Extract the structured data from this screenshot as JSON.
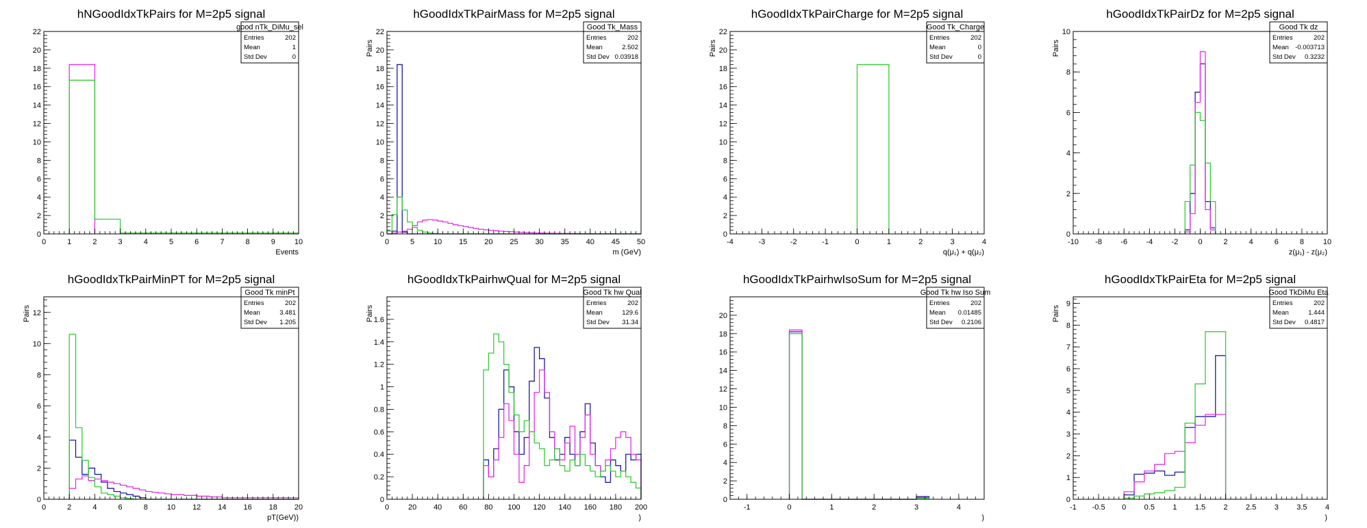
{
  "colors": {
    "blue": "#1a1aa6",
    "magenta": "#e62ee6",
    "green": "#33cc33",
    "axis": "#000000"
  },
  "chart_data": [
    {
      "type": "histogram",
      "title": "hNGoodIdxTkPairs for M=2p5 signal",
      "xlabel": "Events",
      "ylabel": "",
      "xlim": [
        0,
        10
      ],
      "ylim": [
        0,
        22
      ],
      "xticks": [
        0,
        1,
        2,
        3,
        4,
        5,
        6,
        7,
        8,
        9,
        10
      ],
      "yticks": [
        0,
        2,
        4,
        6,
        8,
        10,
        12,
        14,
        16,
        18,
        20,
        22
      ],
      "stats": {
        "name": "good nTk_DiMu_sel",
        "rows": [
          [
            "Entries",
            "202"
          ],
          [
            "Mean",
            "1"
          ],
          [
            "Std Dev",
            "0"
          ]
        ]
      },
      "series": [
        {
          "color": "magenta",
          "edges": [
            1,
            2
          ],
          "values": [
            18.4
          ]
        },
        {
          "color": "green",
          "edges": [
            1,
            2,
            3,
            10
          ],
          "values": [
            16.7,
            1.6,
            0.1
          ]
        }
      ]
    },
    {
      "type": "histogram",
      "title": "hGoodIdxTkPairMass for M=2p5 signal",
      "xlabel": "m (GeV)",
      "ylabel": "Pairs",
      "xlim": [
        0,
        50
      ],
      "ylim": [
        0,
        22
      ],
      "xticks": [
        0,
        5,
        10,
        15,
        20,
        25,
        30,
        35,
        40,
        45,
        50
      ],
      "yticks": [
        0,
        2,
        4,
        6,
        8,
        10,
        12,
        14,
        16,
        18,
        20,
        22
      ],
      "stats": {
        "name": "Good Tk_Mass",
        "rows": [
          [
            "Entries",
            "202"
          ],
          [
            "Mean",
            "2.502"
          ],
          [
            "Std Dev",
            "0.03918"
          ]
        ]
      },
      "series": [
        {
          "color": "blue",
          "edges": [
            0,
            1,
            2,
            3,
            4,
            50
          ],
          "values": [
            0,
            0.3,
            18.4,
            0.2,
            0
          ]
        },
        {
          "color": "magenta",
          "edges": [
            0,
            1,
            2,
            3,
            4,
            5,
            6,
            7,
            8,
            9,
            10,
            11,
            12,
            13,
            14,
            15,
            16,
            17,
            18,
            19,
            20,
            21,
            22,
            23,
            24,
            25,
            26,
            27,
            28,
            29,
            30,
            31,
            32,
            33,
            34,
            35,
            36,
            37,
            38,
            39,
            40,
            41,
            42,
            43,
            44,
            45,
            46,
            47,
            48,
            49,
            50
          ],
          "values": [
            0,
            0.1,
            0.2,
            0.3,
            0.5,
            0.9,
            1.3,
            1.5,
            1.55,
            1.5,
            1.4,
            1.3,
            1.15,
            1.0,
            0.9,
            0.8,
            0.7,
            0.6,
            0.5,
            0.45,
            0.4,
            0.35,
            0.3,
            0.27,
            0.24,
            0.2,
            0.18,
            0.15,
            0.13,
            0.1,
            0.1,
            0.08,
            0.07,
            0.06,
            0.05,
            0.05,
            0.04,
            0.04,
            0.03,
            0.03,
            0.03,
            0.02,
            0.02,
            0.02,
            0.02,
            0.01,
            0.01,
            0.01,
            0.01,
            0.01
          ]
        },
        {
          "color": "green",
          "edges": [
            0,
            1,
            2,
            3,
            4,
            5,
            6,
            7,
            8,
            9,
            10,
            50
          ],
          "values": [
            0.3,
            2.1,
            4.0,
            2.6,
            1.3,
            0.7,
            0.4,
            0.2,
            0.1,
            0.05,
            0
          ]
        }
      ]
    },
    {
      "type": "histogram",
      "title": "hGoodIdxTkPairCharge for M=2p5 signal",
      "xlabel": "q(μ₁) + q(μ₂)",
      "ylabel": "Pairs",
      "xlim": [
        -4,
        4
      ],
      "ylim": [
        0,
        22
      ],
      "xticks": [
        -4,
        -3,
        -2,
        -1,
        0,
        1,
        2,
        3,
        4
      ],
      "yticks": [
        0,
        2,
        4,
        6,
        8,
        10,
        12,
        14,
        16,
        18,
        20,
        22
      ],
      "stats": {
        "name": "Good Tk_Charge",
        "rows": [
          [
            "Entries",
            "202"
          ],
          [
            "Mean",
            "0"
          ],
          [
            "Std Dev",
            "0"
          ]
        ]
      },
      "series": [
        {
          "color": "green",
          "edges": [
            0,
            1
          ],
          "values": [
            18.4
          ]
        }
      ]
    },
    {
      "type": "histogram",
      "title": "hGoodIdxTkPairDz for M=2p5 signal",
      "xlabel": "z(μ₁) - z(μ₂)",
      "ylabel": "Pairs",
      "xlim": [
        -10,
        10
      ],
      "ylim": [
        0,
        10
      ],
      "xticks": [
        -10,
        -8,
        -6,
        -4,
        -2,
        0,
        2,
        4,
        6,
        8,
        10
      ],
      "yticks": [
        0,
        2,
        4,
        6,
        8,
        10
      ],
      "stats": {
        "name": "Good Tk dz",
        "rows": [
          [
            "Entries",
            "202"
          ],
          [
            "Mean",
            "-0.003713"
          ],
          [
            "Std Dev",
            "0.3232"
          ]
        ]
      },
      "series": [
        {
          "color": "blue",
          "edges": [
            -1.2,
            -0.8,
            -0.4,
            0,
            0.4,
            0.8,
            1.2
          ],
          "values": [
            0.2,
            2.0,
            7.0,
            8.4,
            1.6,
            0.3
          ]
        },
        {
          "color": "magenta",
          "edges": [
            -1.2,
            -0.8,
            -0.4,
            0,
            0.4,
            0.8,
            1.2
          ],
          "values": [
            0.1,
            1.0,
            6.5,
            9.0,
            1.2,
            0.2
          ]
        },
        {
          "color": "green",
          "edges": [
            -1.2,
            -0.8,
            -0.4,
            0,
            0.4,
            0.8,
            1.2
          ],
          "values": [
            1.6,
            3.4,
            6.0,
            5.6,
            3.5,
            1.6
          ]
        }
      ]
    },
    {
      "type": "histogram",
      "title": "hGoodIdxTkPairMinPT for M=2p5 signal",
      "xlabel": "pT(GeV))",
      "ylabel": "Pairs",
      "xlim": [
        0,
        20
      ],
      "ylim": [
        0,
        13
      ],
      "xticks": [
        0,
        2,
        4,
        6,
        8,
        10,
        12,
        14,
        16,
        18,
        20
      ],
      "yticks": [
        0,
        2,
        4,
        6,
        8,
        10,
        12
      ],
      "stats": {
        "name": "Good Tk minPt",
        "rows": [
          [
            "Entries",
            "202"
          ],
          [
            "Mean",
            "3.481"
          ],
          [
            "Std Dev",
            "1.205"
          ]
        ]
      },
      "series": [
        {
          "color": "blue",
          "edges": [
            2,
            2.5,
            3,
            3.5,
            4,
            4.5,
            5,
            5.5,
            6,
            6.5,
            7,
            7.5,
            8,
            20
          ],
          "values": [
            3.8,
            2.7,
            1.6,
            2.0,
            1.6,
            1.1,
            0.7,
            0.5,
            0.4,
            0.3,
            0.2,
            0.1,
            0
          ]
        },
        {
          "color": "magenta",
          "edges": [
            2,
            2.5,
            3,
            3.5,
            4,
            4.5,
            5,
            5.5,
            6,
            6.5,
            7,
            7.5,
            8,
            8.5,
            9,
            9.5,
            10,
            11,
            12,
            13,
            14,
            20
          ],
          "values": [
            0.7,
            1.3,
            1.5,
            1.2,
            1.3,
            1.2,
            1.1,
            1.0,
            0.9,
            0.8,
            0.7,
            0.6,
            0.5,
            0.45,
            0.4,
            0.35,
            0.3,
            0.25,
            0.2,
            0.15,
            0.1
          ]
        },
        {
          "color": "green",
          "edges": [
            2,
            2.5,
            3,
            3.5,
            4,
            4.5,
            5,
            5.5,
            6,
            6.5,
            7,
            20
          ],
          "values": [
            10.6,
            4.6,
            2.5,
            1.4,
            0.8,
            0.4,
            0.3,
            0.2,
            0.1,
            0.05,
            0
          ]
        }
      ]
    },
    {
      "type": "histogram",
      "title": "hGoodIdxTkPairhwQual for M=2p5 signal",
      "xlabel": ")",
      "ylabel": "Pairs",
      "xlim": [
        0,
        200
      ],
      "ylim": [
        0,
        1.8
      ],
      "xticks": [
        0,
        20,
        40,
        60,
        80,
        100,
        120,
        140,
        160,
        180,
        200
      ],
      "yticks": [
        0,
        0.2,
        0.4,
        0.6,
        0.8,
        1,
        1.2,
        1.4,
        1.6
      ],
      "stats": {
        "name": "Good Tk hw Qual",
        "rows": [
          [
            "Entries",
            "202"
          ],
          [
            "Mean",
            "129.6"
          ],
          [
            "Std Dev",
            "31.34"
          ]
        ]
      },
      "series": [
        {
          "color": "blue",
          "edges": [
            76,
            80,
            84,
            88,
            92,
            96,
            100,
            104,
            108,
            112,
            116,
            120,
            124,
            128,
            132,
            136,
            140,
            144,
            148,
            152,
            156,
            160,
            164,
            168,
            172,
            176,
            180,
            184,
            188,
            192,
            196,
            200
          ],
          "values": [
            0.35,
            0.2,
            0.45,
            0.8,
            1.15,
            1.0,
            0.6,
            0.4,
            0.55,
            1.05,
            1.35,
            1.25,
            0.9,
            0.55,
            0.35,
            0.4,
            0.55,
            0.4,
            0.3,
            0.6,
            0.85,
            0.5,
            0.3,
            0.2,
            0.15,
            0.35,
            0.3,
            0.25,
            0.4,
            0.35,
            0.4
          ]
        },
        {
          "color": "magenta",
          "edges": [
            76,
            80,
            84,
            88,
            92,
            96,
            100,
            104,
            108,
            112,
            116,
            120,
            124,
            128,
            132,
            136,
            140,
            144,
            148,
            152,
            156,
            160,
            164,
            168,
            172,
            176,
            180,
            184,
            188,
            192,
            196,
            200
          ],
          "values": [
            0.3,
            0.2,
            0.35,
            0.55,
            0.85,
            0.7,
            0.4,
            0.15,
            0.3,
            0.6,
            0.95,
            1.15,
            0.95,
            0.6,
            0.45,
            0.35,
            0.5,
            0.65,
            0.4,
            0.55,
            0.75,
            0.4,
            0.3,
            0.25,
            0.35,
            0.45,
            0.55,
            0.6,
            0.55,
            0.4,
            0.35
          ]
        },
        {
          "color": "green",
          "edges": [
            76,
            80,
            84,
            88,
            92,
            96,
            100,
            104,
            108,
            112,
            116,
            120,
            124,
            128,
            132,
            136,
            140,
            144,
            148,
            152,
            156,
            160,
            164,
            168,
            172,
            176,
            180,
            184,
            188,
            192,
            196,
            200
          ],
          "values": [
            1.15,
            1.3,
            1.47,
            1.4,
            1.2,
            0.95,
            0.75,
            0.6,
            0.7,
            0.6,
            0.5,
            0.45,
            0.3,
            0.35,
            0.45,
            0.3,
            0.25,
            0.35,
            0.3,
            0.4,
            0.3,
            0.25,
            0.2,
            0.25,
            0.3,
            0.25,
            0.2,
            0.25,
            0.2,
            0.15,
            0.1
          ]
        }
      ]
    },
    {
      "type": "histogram",
      "title": "hGoodIdxTkPairhwIsoSum for M=2p5 signal",
      "xlabel": ")",
      "ylabel": "",
      "xlim": [
        -1.4,
        4.6
      ],
      "ylim": [
        0,
        22
      ],
      "xticks": [
        -1,
        0,
        1,
        2,
        3,
        4
      ],
      "yticks": [
        0,
        2,
        4,
        6,
        8,
        10,
        12,
        14,
        16,
        18,
        20
      ],
      "stats": {
        "name": "Good Tk hw Iso Sum",
        "rows": [
          [
            "Entries",
            "202"
          ],
          [
            "Mean",
            "0.01485"
          ],
          [
            "Std Dev",
            "0.2106"
          ]
        ]
      },
      "series": [
        {
          "color": "blue",
          "edges": [
            0,
            0.3,
            3,
            3.3
          ],
          "values": [
            18.2,
            0,
            0.3
          ]
        },
        {
          "color": "magenta",
          "edges": [
            0,
            0.3,
            3,
            3.3
          ],
          "values": [
            18.4,
            0,
            0.2
          ]
        },
        {
          "color": "green",
          "edges": [
            0,
            0.3,
            3,
            3.3
          ],
          "values": [
            18.0,
            0,
            0.1
          ]
        }
      ]
    },
    {
      "type": "histogram",
      "title": "hGoodIdxTkPairEta for M=2p5 signal",
      "xlabel": ")",
      "ylabel": "Pairs",
      "xlim": [
        -1,
        4
      ],
      "ylim": [
        0,
        9.3
      ],
      "xticks": [
        -1,
        -0.5,
        0,
        0.5,
        1,
        1.5,
        2,
        2.5,
        3,
        3.5,
        4
      ],
      "yticks": [
        0,
        1,
        2,
        3,
        4,
        5,
        6,
        7,
        8,
        9
      ],
      "stats": {
        "name": "Good TkDiMu Eta",
        "rows": [
          [
            "Entries",
            "202"
          ],
          [
            "Mean",
            "1.444"
          ],
          [
            "Std Dev",
            "0.4817"
          ]
        ]
      },
      "series": [
        {
          "color": "blue",
          "edges": [
            0,
            0.2,
            0.4,
            0.6,
            0.8,
            1,
            1.2,
            1.4,
            1.6,
            1.8,
            2.0
          ],
          "values": [
            0.2,
            1.15,
            1.2,
            1.3,
            1.1,
            1.25,
            3.3,
            3.8,
            3.8,
            6.6
          ]
        },
        {
          "color": "magenta",
          "edges": [
            0,
            0.2,
            0.4,
            0.6,
            0.8,
            1,
            1.2,
            1.4,
            1.6,
            1.8,
            2.0
          ],
          "values": [
            0.35,
            0.8,
            1.3,
            1.6,
            2.1,
            2.2,
            2.6,
            3.4,
            3.9,
            3.9
          ]
        },
        {
          "color": "green",
          "edges": [
            0,
            0.2,
            0.4,
            0.6,
            0.8,
            1,
            1.2,
            1.4,
            1.6,
            1.8,
            2.0
          ],
          "values": [
            0.05,
            0.15,
            0.25,
            0.3,
            0.4,
            0.55,
            3.5,
            5.3,
            7.7,
            7.7
          ]
        }
      ]
    }
  ]
}
